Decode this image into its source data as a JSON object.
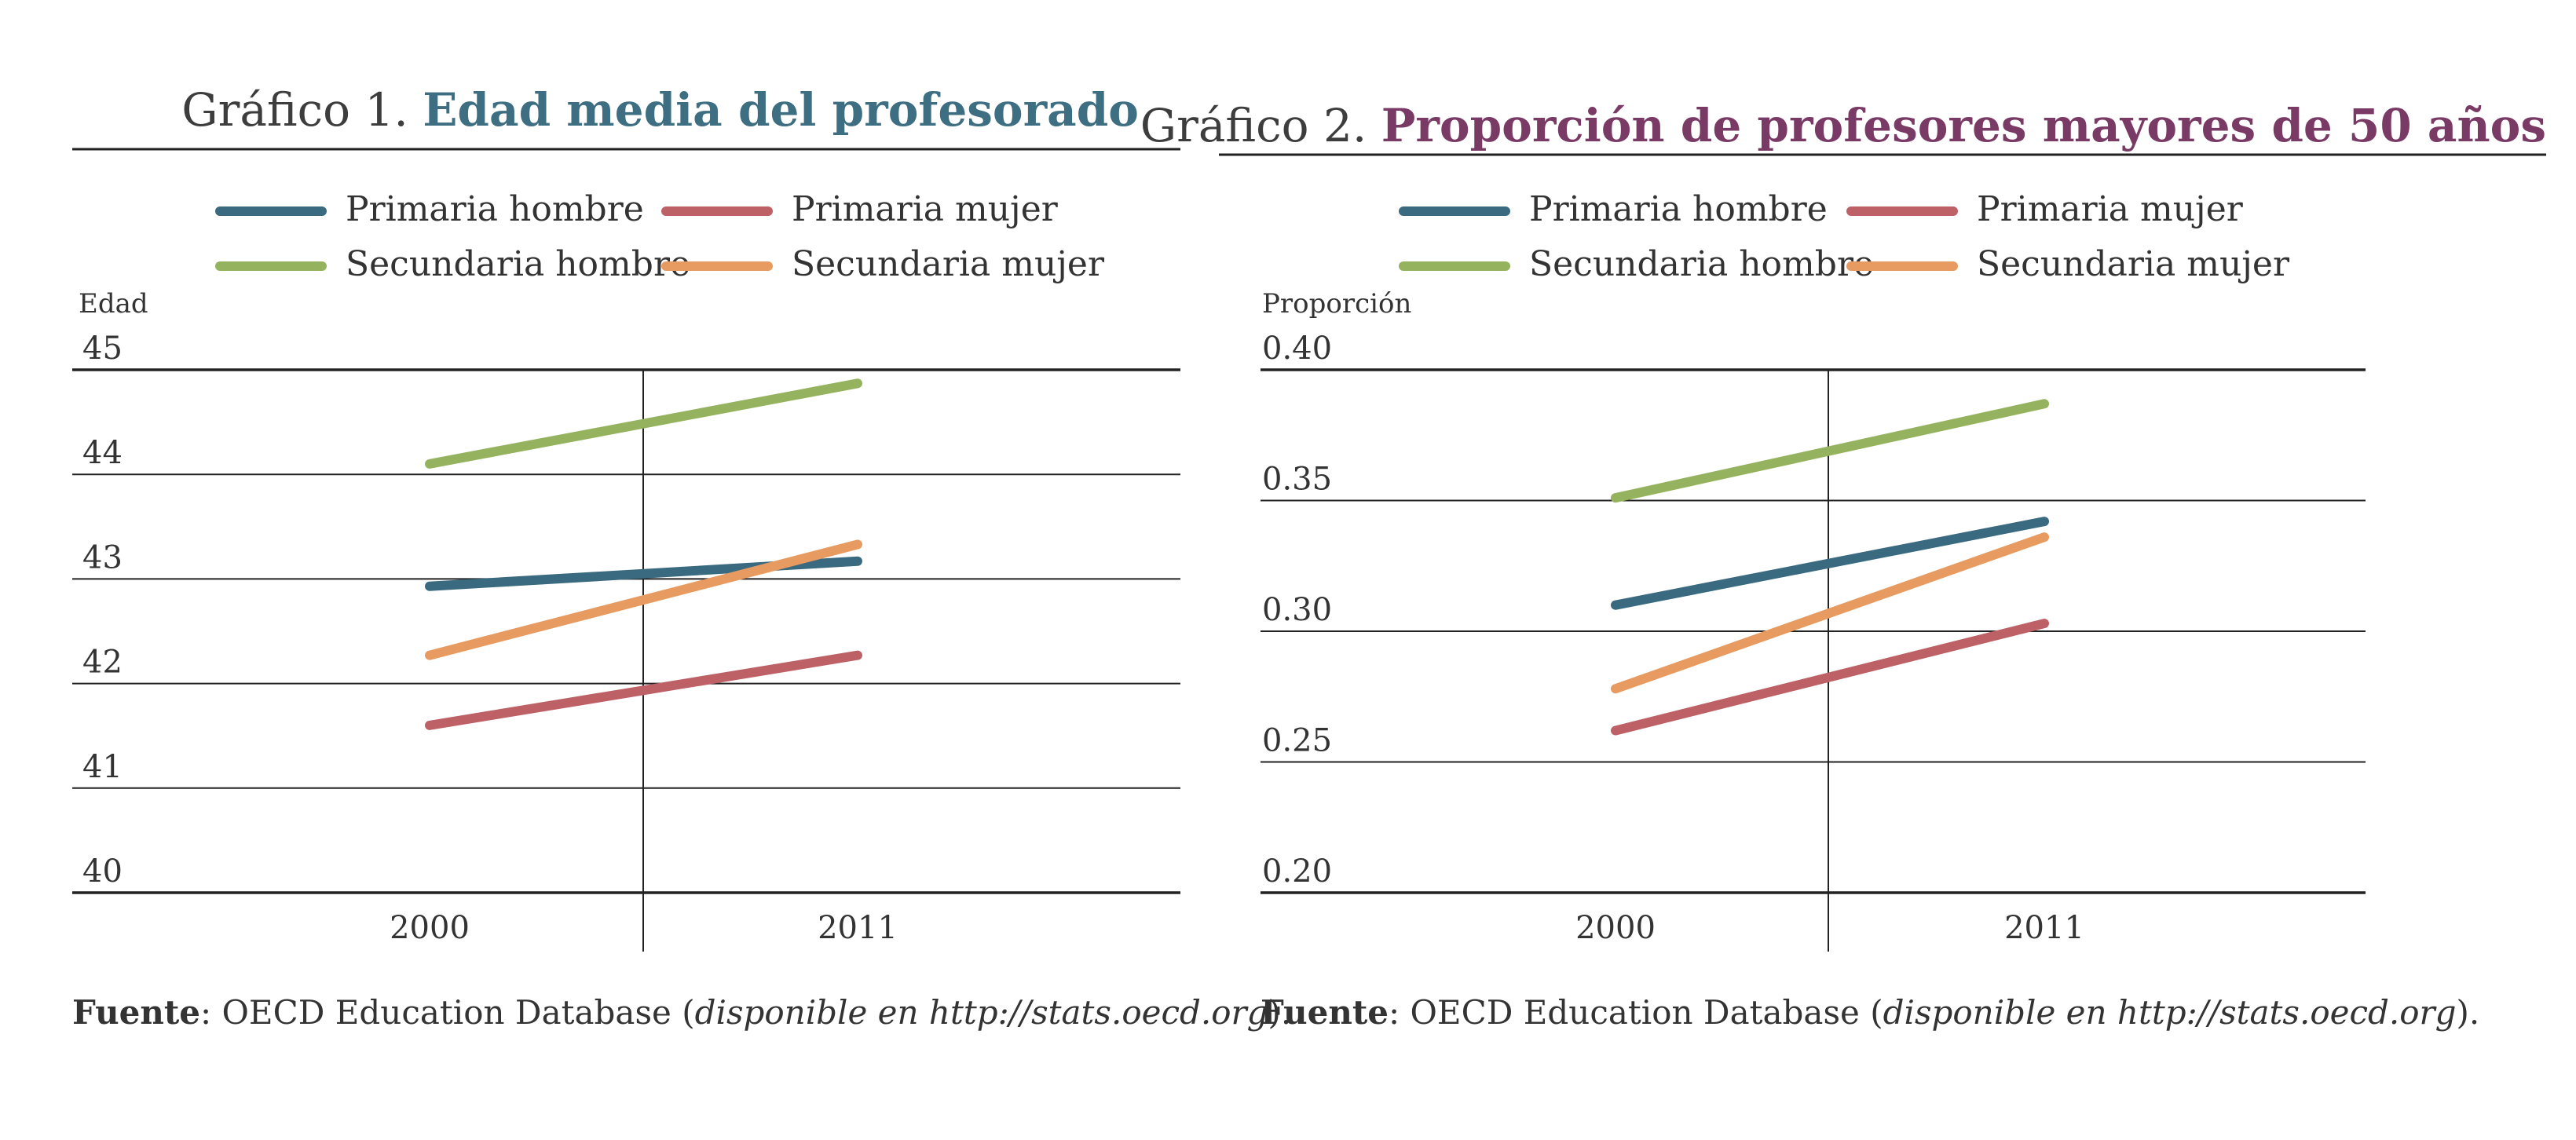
{
  "chart_data": [
    {
      "type": "line",
      "title_prefix": "Gráfico 1.",
      "title": "Edad media del profesorado",
      "title_color": "#3e6e82",
      "ylabel": "Edad",
      "xlabel": "",
      "categories": [
        "2000",
        "2011"
      ],
      "ylim": [
        40,
        45
      ],
      "yticks": [
        "45",
        "44",
        "43",
        "42",
        "41",
        "40"
      ],
      "ytick_values": [
        45,
        44,
        43,
        42,
        41,
        40
      ],
      "grid": true,
      "legend_position": "top",
      "series": [
        {
          "name": "Primaria hombre",
          "color": "#3a6a80",
          "values": [
            42.93,
            43.17
          ]
        },
        {
          "name": "Primaria mujer",
          "color": "#bd6166",
          "values": [
            41.6,
            42.27
          ]
        },
        {
          "name": "Secundaria hombre",
          "color": "#95b35e",
          "values": [
            44.1,
            44.87
          ]
        },
        {
          "name": "Secundaria mujer",
          "color": "#e79b61",
          "values": [
            42.27,
            43.33
          ]
        }
      ],
      "source_label": "Fuente",
      "source_text": ": OECD Education Database (",
      "source_italic": "disponible en http://stats.oecd.org",
      "source_end": ")."
    },
    {
      "type": "line",
      "title_prefix": "Gráfico 2.",
      "title": "Proporción de profesores mayores de 50 años",
      "title_color": "#7a3a66",
      "ylabel": "Proporción",
      "xlabel": "",
      "categories": [
        "2000",
        "2011"
      ],
      "ylim": [
        0.2,
        0.4
      ],
      "yticks": [
        "0.40",
        "0.35",
        "0.30",
        "0.25",
        "0.20"
      ],
      "ytick_values": [
        0.4,
        0.35,
        0.3,
        0.25,
        0.2
      ],
      "grid": true,
      "legend_position": "top",
      "series": [
        {
          "name": "Primaria hombre",
          "color": "#3a6a80",
          "values": [
            0.31,
            0.342
          ]
        },
        {
          "name": "Primaria mujer",
          "color": "#bd6166",
          "values": [
            0.262,
            0.303
          ]
        },
        {
          "name": "Secundaria hombre",
          "color": "#95b35e",
          "values": [
            0.351,
            0.387
          ]
        },
        {
          "name": "Secundaria mujer",
          "color": "#e79b61",
          "values": [
            0.278,
            0.336
          ]
        }
      ],
      "source_label": "Fuente",
      "source_text": ": OECD Education Database (",
      "source_italic": "disponible en http://stats.oecd.org",
      "source_end": ")."
    }
  ]
}
